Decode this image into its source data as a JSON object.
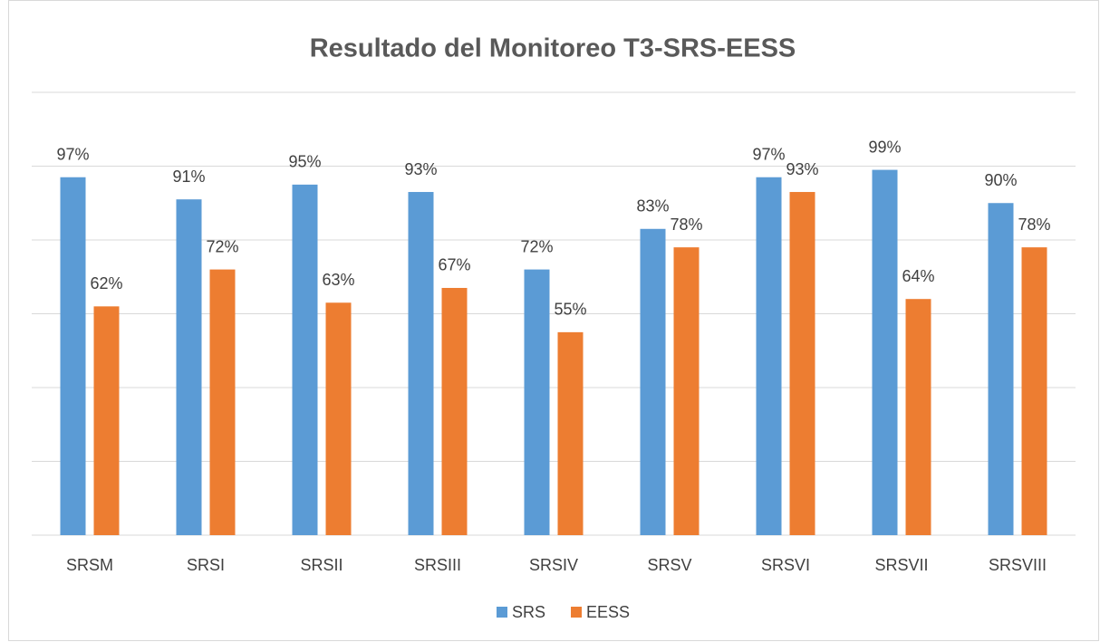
{
  "chart_data": {
    "type": "bar",
    "title": "Resultado del Monitoreo T3-SRS-EESS",
    "categories": [
      "SRSM",
      "SRSI",
      "SRSII",
      "SRSIII",
      "SRSIV",
      "SRSV",
      "SRSVI",
      "SRSVII",
      "SRSVIII"
    ],
    "series": [
      {
        "name": "SRS",
        "color": "#5b9bd5",
        "values": [
          97,
          91,
          95,
          93,
          72,
          83,
          97,
          99,
          90
        ],
        "value_labels": [
          "97%",
          "91%",
          "95%",
          "93%",
          "72%",
          "83%",
          "97%",
          "99%",
          "90%"
        ]
      },
      {
        "name": "EESS",
        "color": "#ed7d31",
        "values": [
          62,
          72,
          63,
          67,
          55,
          78,
          93,
          64,
          78
        ],
        "value_labels": [
          "62%",
          "72%",
          "63%",
          "67%",
          "55%",
          "78%",
          "93%",
          "64%",
          "78%"
        ]
      }
    ],
    "ylim": [
      0,
      120
    ],
    "yticks": [
      0,
      20,
      40,
      60,
      80,
      100,
      120
    ],
    "grid": true,
    "legend": "bottom"
  }
}
